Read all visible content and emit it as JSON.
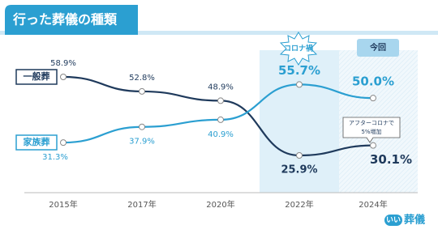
{
  "chart_data": {
    "type": "line",
    "title": "行った葬儀の種類",
    "categories": [
      "2015年",
      "2017年",
      "2020年",
      "2022年",
      "2024年"
    ],
    "series": [
      {
        "name": "一般葬",
        "color": "#1f3a5c",
        "values": [
          58.9,
          52.8,
          48.9,
          25.9,
          30.1
        ],
        "value_labels": [
          "58.9%",
          "52.8%",
          "48.9%",
          "25.9%",
          "30.1%"
        ]
      },
      {
        "name": "家族葬",
        "color": "#2b9fd1",
        "values": [
          31.3,
          37.9,
          40.9,
          55.7,
          50.0
        ],
        "value_labels": [
          "31.3%",
          "37.9%",
          "40.9%",
          "55.7%",
          "50.0%"
        ]
      }
    ],
    "annotations": [
      "コロナ禍",
      "今回",
      "アフターコロナで",
      "5%増加"
    ],
    "logo": [
      "いい",
      "葬儀"
    ]
  }
}
